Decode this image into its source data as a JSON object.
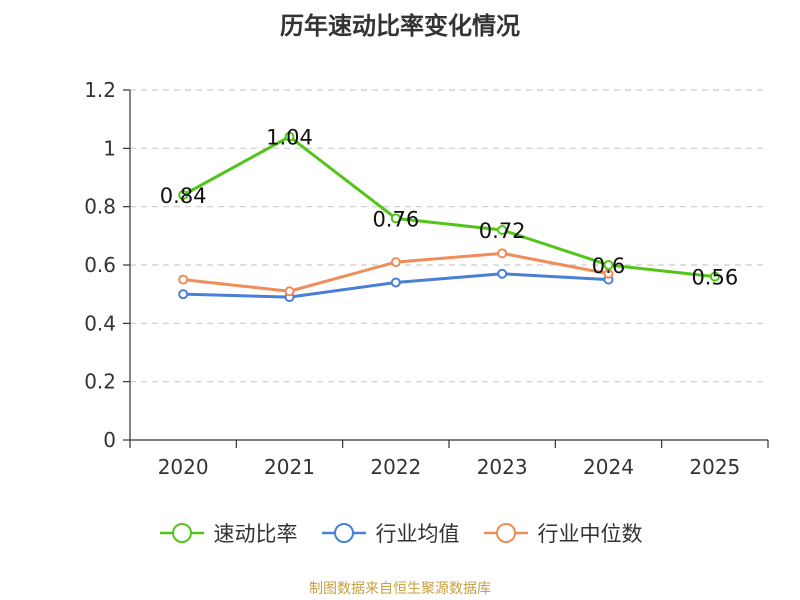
{
  "chart_data": {
    "type": "line",
    "title": "历年速动比率变化情况",
    "categories": [
      "2020",
      "2021",
      "2022",
      "2023",
      "2024",
      "2025"
    ],
    "ylim": [
      0,
      1.2
    ],
    "yticks": [
      "0",
      "0.2",
      "0.4",
      "0.6",
      "0.8",
      "1",
      "1.2"
    ],
    "grid": true,
    "legend_position": "bottom",
    "series": [
      {
        "name": "速动比率",
        "color": "#52c41a",
        "values": [
          0.84,
          1.04,
          0.76,
          0.72,
          0.6,
          0.56
        ],
        "labels": [
          "0.84",
          "1.04",
          "0.76",
          "0.72",
          "0.6",
          "0.56"
        ]
      },
      {
        "name": "行业均值",
        "color": "#4a7fd6",
        "values": [
          0.5,
          0.49,
          0.54,
          0.57,
          0.55,
          null
        ]
      },
      {
        "name": "行业中位数",
        "color": "#f08c5a",
        "values": [
          0.55,
          0.51,
          0.61,
          0.64,
          0.57,
          null
        ]
      }
    ]
  },
  "source": "制图数据来自恒生聚源数据库"
}
